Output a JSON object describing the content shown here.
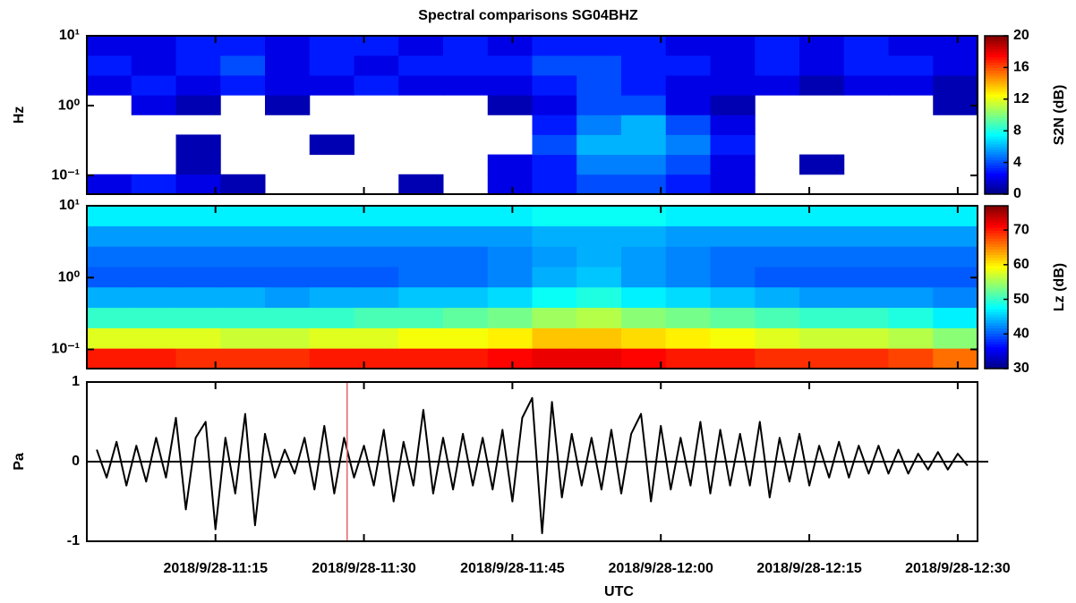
{
  "chart_data": [
    {
      "type": "heatmap",
      "title": "Spectral comparisons SG04BHZ",
      "ylabel": "Hz",
      "log_y": true,
      "xlim": [
        662,
        752
      ],
      "ylim": [
        0.054,
        10
      ],
      "yticks": [
        {
          "value": 10,
          "label": "10¹"
        },
        {
          "value": 1,
          "label": "10⁰"
        },
        {
          "value": 0.1,
          "label": "10⁻¹"
        }
      ],
      "colormap": "jet",
      "colorbar": {
        "label": "S2N (dB)",
        "lim": [
          0,
          20
        ],
        "ticks": [
          0,
          4,
          8,
          12,
          16,
          20
        ]
      },
      "x_edges": [
        662,
        666.5,
        671,
        675.5,
        680,
        684.5,
        689,
        693.5,
        698,
        702.5,
        707,
        711.5,
        716,
        720.5,
        725,
        729.5,
        734,
        738.5,
        743,
        747.5,
        752
      ],
      "y_edges": [
        0.054,
        0.104,
        0.2,
        0.385,
        0.74,
        1.42,
        2.73,
        5.25,
        10
      ],
      "z": [
        [
          2,
          3,
          2,
          1,
          null,
          null,
          null,
          1,
          null,
          2,
          3,
          4,
          4,
          3,
          2,
          null,
          null,
          null,
          null,
          null
        ],
        [
          null,
          null,
          1,
          null,
          null,
          null,
          null,
          null,
          null,
          2,
          3,
          5,
          5,
          4,
          2,
          null,
          1,
          null,
          null,
          null
        ],
        [
          null,
          null,
          1,
          null,
          null,
          1,
          null,
          null,
          null,
          null,
          4,
          6,
          6,
          5,
          3,
          null,
          null,
          null,
          null,
          null
        ],
        [
          null,
          null,
          null,
          null,
          null,
          null,
          null,
          null,
          null,
          null,
          3,
          5,
          6,
          4,
          2,
          null,
          null,
          null,
          null,
          null
        ],
        [
          null,
          2,
          1,
          null,
          1,
          null,
          null,
          null,
          null,
          1,
          2,
          4,
          4,
          2,
          1,
          null,
          null,
          null,
          null,
          1
        ],
        [
          2,
          3,
          2,
          3,
          2,
          2,
          3,
          2,
          2,
          2,
          3,
          4,
          3,
          2,
          2,
          2,
          1,
          2,
          2,
          1
        ],
        [
          3,
          2,
          3,
          4,
          2,
          3,
          2,
          3,
          3,
          3,
          4,
          4,
          3,
          3,
          2,
          3,
          2,
          3,
          3,
          2
        ],
        [
          2,
          2,
          3,
          3,
          2,
          3,
          3,
          2,
          3,
          2,
          3,
          3,
          3,
          2,
          2,
          3,
          2,
          3,
          2,
          2
        ]
      ]
    },
    {
      "type": "heatmap",
      "log_y": true,
      "xlim": [
        662,
        752
      ],
      "ylim": [
        0.054,
        10
      ],
      "yticks": [
        {
          "value": 10,
          "label": "10¹"
        },
        {
          "value": 1,
          "label": "10⁰"
        },
        {
          "value": 0.1,
          "label": "10⁻¹"
        }
      ],
      "colormap": "jet",
      "colorbar": {
        "label": "Lz (dB)",
        "lim": [
          30,
          77
        ],
        "ticks": [
          30,
          40,
          50,
          60,
          70
        ]
      },
      "x_edges": [
        662,
        666.5,
        671,
        675.5,
        680,
        684.5,
        689,
        693.5,
        698,
        702.5,
        707,
        711.5,
        716,
        720.5,
        725,
        729.5,
        734,
        738.5,
        743,
        747.5,
        752
      ],
      "y_edges": [
        0.054,
        0.104,
        0.2,
        0.385,
        0.74,
        1.42,
        2.73,
        5.25,
        10
      ],
      "z": [
        [
          70,
          70,
          69,
          69,
          69,
          70,
          70,
          70,
          70,
          71,
          72,
          72,
          71,
          70,
          70,
          69,
          69,
          69,
          68,
          66
        ],
        [
          58,
          58,
          58,
          57,
          57,
          58,
          58,
          59,
          59,
          60,
          62,
          62,
          61,
          60,
          59,
          58,
          57,
          57,
          56,
          54
        ],
        [
          50,
          50,
          50,
          50,
          50,
          50,
          51,
          51,
          52,
          53,
          55,
          56,
          54,
          53,
          52,
          51,
          50,
          50,
          49,
          47
        ],
        [
          44,
          44,
          44,
          44,
          43,
          44,
          44,
          45,
          45,
          46,
          48,
          49,
          47,
          46,
          45,
          44,
          43,
          43,
          43,
          42
        ],
        [
          40,
          40,
          40,
          40,
          40,
          40,
          40,
          41,
          41,
          42,
          44,
          45,
          43,
          42,
          41,
          40,
          40,
          40,
          40,
          40
        ],
        [
          41,
          41,
          41,
          41,
          41,
          41,
          41,
          41,
          41,
          42,
          43,
          44,
          43,
          42,
          41,
          41,
          41,
          41,
          41,
          41
        ],
        [
          43,
          43,
          43,
          43,
          43,
          43,
          43,
          43,
          43,
          43,
          44,
          44,
          44,
          43,
          43,
          43,
          43,
          43,
          43,
          43
        ],
        [
          47,
          47,
          47,
          47,
          47,
          47,
          47,
          47,
          47,
          47,
          48,
          48,
          48,
          47,
          47,
          47,
          47,
          47,
          47,
          47
        ]
      ]
    },
    {
      "type": "line",
      "ylabel": "Pa",
      "xlabel": "UTC",
      "color": "#000000",
      "xlim": [
        662,
        752
      ],
      "ylim": [
        -1,
        1
      ],
      "yticks": [
        -1,
        0,
        1
      ],
      "xticks": [
        {
          "value": 675,
          "label": "2018/9/28-11:15"
        },
        {
          "value": 690,
          "label": "2018/9/28-11:30"
        },
        {
          "value": 705,
          "label": "2018/9/28-11:45"
        },
        {
          "value": 720,
          "label": "2018/9/28-12:00"
        },
        {
          "value": 735,
          "label": "2018/9/28-12:15"
        },
        {
          "value": 750,
          "label": "2018/9/28-12:30"
        }
      ],
      "cursor": {
        "x": 688.3,
        "color": "#e06666"
      },
      "x": [
        663,
        664,
        665,
        666,
        667,
        668,
        669,
        670,
        671,
        672,
        673,
        674,
        675,
        676,
        677,
        678,
        679,
        680,
        681,
        682,
        683,
        684,
        685,
        686,
        687,
        688,
        689,
        690,
        691,
        692,
        693,
        694,
        695,
        696,
        697,
        698,
        699,
        700,
        701,
        702,
        703,
        704,
        705,
        706,
        707,
        708,
        709,
        710,
        711,
        712,
        713,
        714,
        715,
        716,
        717,
        718,
        719,
        720,
        721,
        722,
        723,
        724,
        725,
        726,
        727,
        728,
        729,
        730,
        731,
        732,
        733,
        734,
        735,
        736,
        737,
        738,
        739,
        740,
        741,
        742,
        743,
        744,
        745,
        746,
        747,
        748,
        749,
        750,
        751
      ],
      "values": [
        0.15,
        -0.2,
        0.25,
        -0.3,
        0.2,
        -0.25,
        0.3,
        -0.2,
        0.55,
        -0.6,
        0.3,
        0.5,
        -0.85,
        0.3,
        -0.4,
        0.6,
        -0.8,
        0.35,
        -0.2,
        0.15,
        -0.15,
        0.3,
        -0.35,
        0.45,
        -0.4,
        0.3,
        -0.2,
        0.2,
        -0.3,
        0.4,
        -0.5,
        0.25,
        -0.3,
        0.65,
        -0.4,
        0.3,
        -0.35,
        0.35,
        -0.3,
        0.3,
        -0.35,
        0.4,
        -0.5,
        0.55,
        0.8,
        -0.9,
        0.75,
        -0.45,
        0.35,
        -0.3,
        0.3,
        -0.35,
        0.4,
        -0.4,
        0.35,
        0.6,
        -0.5,
        0.45,
        -0.35,
        0.3,
        -0.3,
        0.5,
        -0.4,
        0.4,
        -0.3,
        0.35,
        -0.3,
        0.5,
        -0.45,
        0.3,
        -0.25,
        0.35,
        -0.3,
        0.2,
        -0.2,
        0.25,
        -0.2,
        0.2,
        -0.15,
        0.2,
        -0.15,
        0.15,
        -0.15,
        0.1,
        -0.1,
        0.12,
        -0.1,
        0.1,
        -0.05
      ]
    }
  ]
}
